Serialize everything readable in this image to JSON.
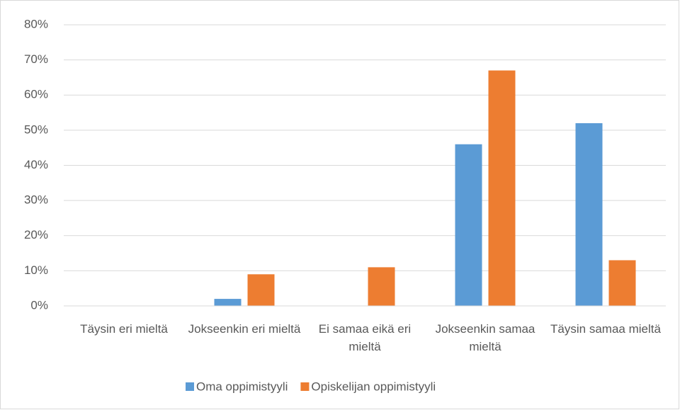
{
  "chart_data": {
    "type": "bar",
    "categories": [
      "Täysin eri mieltä",
      "Jokseenkin eri mieltä",
      "Ei samaa eikä eri mieltä",
      "Jokseenkin samaa mieltä",
      "Täysin samaa mieltä"
    ],
    "series": [
      {
        "name": "Oma oppimistyyli",
        "color": "#5b9bd5",
        "values": [
          0,
          2,
          0,
          46,
          52
        ]
      },
      {
        "name": "Opiskelijan oppimistyyli",
        "color": "#ed7d31",
        "values": [
          0,
          9,
          11,
          67,
          13
        ]
      }
    ],
    "ylim": [
      0,
      80
    ],
    "yticks": [
      {
        "value": 0,
        "label": "0%"
      },
      {
        "value": 10,
        "label": "10%"
      },
      {
        "value": 20,
        "label": "20%"
      },
      {
        "value": 30,
        "label": "30%"
      },
      {
        "value": 40,
        "label": "40%"
      },
      {
        "value": 50,
        "label": "50%"
      },
      {
        "value": 60,
        "label": "60%"
      },
      {
        "value": 70,
        "label": "70%"
      },
      {
        "value": 80,
        "label": "80%"
      }
    ],
    "grid": true,
    "legend": "bottom"
  }
}
